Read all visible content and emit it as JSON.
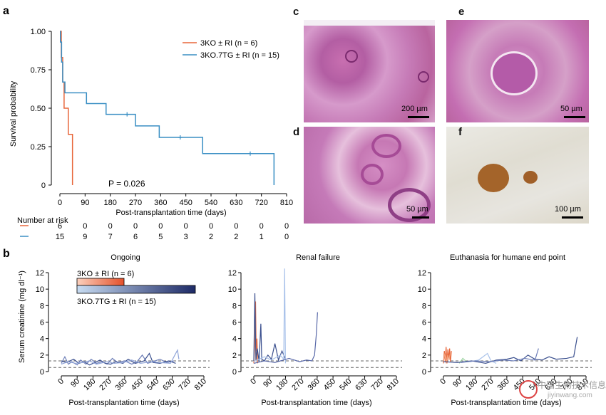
{
  "panel_a": {
    "label": "a",
    "ylabel": "Survival probability",
    "xlabel": "Post-transplantation time (days)",
    "pvalue": "P = 0.026",
    "risk_title": "Number at risk",
    "legend": [
      {
        "text": "3KO ± RI (n = 6)",
        "color": "#e8663a"
      },
      {
        "text": "3KO.7TG ± RI (n = 15)",
        "color": "#3a8fc4"
      }
    ],
    "risk_rows": [
      {
        "color": "#e8663a",
        "values": [
          "6",
          "0",
          "0",
          "0",
          "0",
          "0",
          "0",
          "0",
          "0",
          "0"
        ]
      },
      {
        "color": "#3a8fc4",
        "values": [
          "15",
          "9",
          "7",
          "6",
          "5",
          "3",
          "2",
          "2",
          "1",
          "0"
        ]
      }
    ]
  },
  "panel_b": {
    "label": "b",
    "ylabel": "Serum creatinine (mg dl⁻¹)",
    "xlabel": "Post-transplantation time (days)",
    "subtitles": [
      "Ongoing",
      "Renal failure",
      "Euthanasia for humane end point"
    ],
    "legend_3ko": "3KO ± RI (n = 6)",
    "legend_3ko7tg": "3KO.7TG ± RI (n = 15)"
  },
  "micro": {
    "c": {
      "label": "c",
      "scale": "200 µm"
    },
    "d": {
      "label": "d",
      "scale": "50 µm"
    },
    "e": {
      "label": "e",
      "scale": "50 µm"
    },
    "f": {
      "label": "f",
      "scale": "100 µm"
    }
  },
  "watermark": {
    "text": "中国生物技术信息网",
    "url": "jiyinwang.com"
  },
  "chart_data": [
    {
      "type": "line",
      "title": "",
      "xlabel": "Post-transplantation time (days)",
      "ylabel": "Survival probability",
      "xlim": [
        0,
        810
      ],
      "ylim": [
        0,
        1
      ],
      "x_ticks": [
        0,
        90,
        180,
        270,
        360,
        450,
        540,
        630,
        720,
        810
      ],
      "y_ticks": [
        "0",
        "0.25",
        "0.50",
        "0.75",
        "1.00"
      ],
      "series": [
        {
          "name": "3KO ± RI (n = 6)",
          "color": "#e8663a",
          "steps": [
            [
              0,
              1
            ],
            [
              5,
              0.83
            ],
            [
              10,
              0.67
            ],
            [
              15,
              0.5
            ],
            [
              30,
              0.33
            ],
            [
              45,
              0
            ]
          ]
        },
        {
          "name": "3KO.7TG ± RI (n = 15)",
          "color": "#3a8fc4",
          "steps": [
            [
              0,
              1
            ],
            [
              2,
              0.93
            ],
            [
              6,
              0.8
            ],
            [
              10,
              0.67
            ],
            [
              18,
              0.6
            ],
            [
              95,
              0.53
            ],
            [
              165,
              0.46
            ],
            [
              270,
              0.385
            ],
            [
              355,
              0.31
            ],
            [
              510,
              0.205
            ],
            [
              765,
              0
            ]
          ],
          "censored": [
            [
              240,
              0.46
            ],
            [
              430,
              0.31
            ],
            [
              680,
              0.205
            ]
          ]
        }
      ]
    },
    {
      "type": "line",
      "title": "Ongoing",
      "xlim": [
        0,
        810
      ],
      "ylim": [
        0,
        12
      ],
      "x_ticks": [
        0,
        90,
        180,
        270,
        360,
        450,
        540,
        630,
        720,
        810
      ],
      "y_ticks": [
        0,
        2,
        4,
        6,
        8,
        10,
        12
      ],
      "reference_lines": [
        0.5,
        1.3
      ],
      "series": [
        {
          "color": "#6e7fb8",
          "points": [
            [
              0,
              1.0
            ],
            [
              20,
              1.8
            ],
            [
              40,
              0.9
            ],
            [
              60,
              1.2
            ],
            [
              90,
              0.8
            ],
            [
              110,
              1.4
            ],
            [
              140,
              0.9
            ],
            [
              170,
              1.5
            ],
            [
              200,
              1.0
            ],
            [
              230,
              1.2
            ],
            [
              260,
              0.9
            ],
            [
              290,
              1.6
            ],
            [
              320,
              1.1
            ],
            [
              360,
              1.3
            ],
            [
              400,
              0.9
            ],
            [
              430,
              1.2
            ],
            [
              460,
              2.0
            ],
            [
              490,
              1.0
            ],
            [
              520,
              1.2
            ],
            [
              560,
              1.5
            ],
            [
              600,
              1.1
            ],
            [
              640,
              1.3
            ]
          ]
        },
        {
          "color": "#3a4f8e",
          "points": [
            [
              0,
              1.3
            ],
            [
              30,
              1.1
            ],
            [
              70,
              1.5
            ],
            [
              100,
              1.0
            ],
            [
              130,
              1.2
            ],
            [
              160,
              0.8
            ],
            [
              190,
              1.1
            ],
            [
              220,
              1.4
            ],
            [
              250,
              1.0
            ],
            [
              280,
              0.9
            ],
            [
              310,
              1.2
            ],
            [
              350,
              1.0
            ],
            [
              380,
              1.5
            ],
            [
              420,
              1.0
            ],
            [
              470,
              1.3
            ],
            [
              500,
              2.2
            ],
            [
              520,
              1.1
            ],
            [
              560,
              1.0
            ],
            [
              610,
              1.3
            ],
            [
              650,
              1.0
            ]
          ]
        },
        {
          "color": "#8fa4d8",
          "points": [
            [
              0,
              0.9
            ],
            [
              40,
              1.2
            ],
            [
              80,
              1.0
            ],
            [
              120,
              1.1
            ],
            [
              160,
              1.3
            ],
            [
              200,
              0.9
            ],
            [
              260,
              1.2
            ],
            [
              300,
              1.0
            ],
            [
              350,
              1.1
            ],
            [
              400,
              1.4
            ],
            [
              450,
              1.0
            ],
            [
              510,
              1.2
            ],
            [
              560,
              1.1
            ],
            [
              620,
              1.0
            ],
            [
              660,
              2.6
            ],
            [
              668,
              1.5
            ]
          ]
        }
      ]
    },
    {
      "type": "line",
      "title": "Renal failure",
      "xlim": [
        0,
        810
      ],
      "ylim": [
        0,
        12
      ],
      "x_ticks": [
        0,
        90,
        180,
        270,
        360,
        450,
        540,
        630,
        720,
        810
      ],
      "y_ticks": [
        0,
        2,
        4,
        6,
        8,
        10,
        12
      ],
      "reference_lines": [
        0.5,
        1.3
      ],
      "series": [
        {
          "color": "#e8663a",
          "points": [
            [
              0,
              1.0
            ],
            [
              5,
              3.0
            ],
            [
              10,
              8.5
            ],
            [
              14,
              1.5
            ],
            [
              18,
              4.0
            ],
            [
              22,
              1.0
            ]
          ]
        },
        {
          "color": "#f2a07a",
          "points": [
            [
              0,
              1.2
            ],
            [
              8,
              6.5
            ],
            [
              12,
              1.3
            ],
            [
              16,
              2.5
            ],
            [
              20,
              1.1
            ]
          ]
        },
        {
          "color": "#3a4f8e",
          "points": [
            [
              0,
              1.3
            ],
            [
              6,
              9.5
            ],
            [
              12,
              1.4
            ],
            [
              20,
              2.8
            ],
            [
              30,
              1.2
            ],
            [
              40,
              5.8
            ],
            [
              45,
              1.5
            ],
            [
              60,
              1.3
            ],
            [
              80,
              2.0
            ],
            [
              100,
              1.5
            ],
            [
              120,
              3.4
            ],
            [
              140,
              1.4
            ],
            [
              160,
              2.5
            ],
            [
              180,
              1.5
            ]
          ]
        },
        {
          "color": "#a9c2ea",
          "points": [
            [
              0,
              1.2
            ],
            [
              60,
              1.8
            ],
            [
              100,
              1.4
            ],
            [
              150,
              2.0
            ],
            [
              170,
              1.5
            ],
            [
              175,
              12.5
            ],
            [
              180,
              1.0
            ]
          ]
        },
        {
          "color": "#5868a8",
          "points": [
            [
              0,
              1.0
            ],
            [
              60,
              1.3
            ],
            [
              120,
              1.1
            ],
            [
              200,
              1.6
            ],
            [
              260,
              1.2
            ],
            [
              300,
              1.4
            ],
            [
              330,
              1.3
            ],
            [
              345,
              2.0
            ],
            [
              355,
              4.5
            ],
            [
              362,
              7.2
            ]
          ]
        }
      ]
    },
    {
      "type": "line",
      "title": "Euthanasia for humane end point",
      "xlim": [
        0,
        810
      ],
      "ylim": [
        0,
        12
      ],
      "x_ticks": [
        0,
        90,
        180,
        270,
        360,
        450,
        540,
        630,
        720,
        810
      ],
      "y_ticks": [
        0,
        2,
        4,
        6,
        8,
        10,
        12
      ],
      "reference_lines": [
        0.5,
        1.3
      ],
      "series": [
        {
          "color": "#e8663a",
          "points": [
            [
              0,
              1.0
            ],
            [
              5,
              2.5
            ],
            [
              10,
              1.2
            ],
            [
              15,
              3.0
            ],
            [
              20,
              1.0
            ],
            [
              25,
              2.7
            ],
            [
              30,
              1.5
            ],
            [
              35,
              2.8
            ],
            [
              40,
              1.2
            ],
            [
              45,
              2.5
            ]
          ]
        },
        {
          "color": "#f2a07a",
          "points": [
            [
              0,
              1.3
            ],
            [
              8,
              2.2
            ],
            [
              16,
              1.0
            ],
            [
              24,
              2.0
            ],
            [
              32,
              1.4
            ],
            [
              40,
              2.3
            ]
          ]
        },
        {
          "color": "#9bd3a0",
          "points": [
            [
              90,
              1.0
            ],
            [
              110,
              1.6
            ],
            [
              130,
              1.2
            ]
          ]
        },
        {
          "color": "#a9c2ea",
          "points": [
            [
              150,
              1.2
            ],
            [
              200,
              1.4
            ],
            [
              250,
              2.2
            ],
            [
              270,
              1.3
            ],
            [
              300,
              1.0
            ]
          ]
        },
        {
          "color": "#3a4f8e",
          "points": [
            [
              0,
              1.2
            ],
            [
              80,
              1.1
            ],
            [
              160,
              1.3
            ],
            [
              240,
              1.0
            ],
            [
              300,
              1.4
            ],
            [
              360,
              1.5
            ],
            [
              400,
              1.7
            ],
            [
              440,
              1.3
            ],
            [
              480,
              2.0
            ],
            [
              520,
              1.5
            ],
            [
              560,
              1.4
            ],
            [
              600,
              1.8
            ],
            [
              640,
              1.5
            ],
            [
              700,
              1.6
            ],
            [
              740,
              1.8
            ],
            [
              760,
              4.2
            ]
          ]
        },
        {
          "color": "#6e7fb8",
          "points": [
            [
              100,
              1.1
            ],
            [
              180,
              1.3
            ],
            [
              260,
              1.2
            ],
            [
              340,
              1.4
            ],
            [
              400,
              1.3
            ],
            [
              460,
              1.6
            ],
            [
              520,
              1.4
            ],
            [
              540,
              2.8
            ]
          ]
        }
      ]
    }
  ]
}
